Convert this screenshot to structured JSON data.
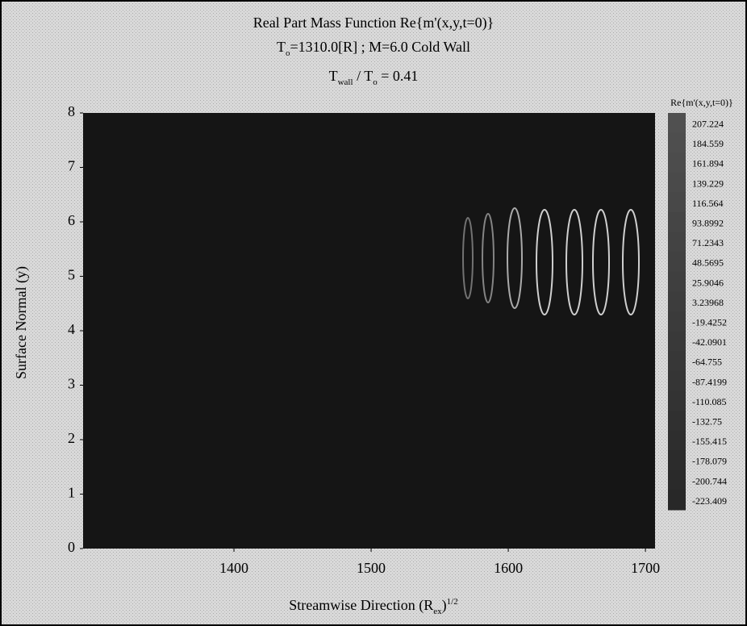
{
  "chart_data": {
    "type": "contour",
    "title": [
      {
        "text": "Real Part Mass Function Re{m'(x,y,t=0)}"
      }
    ],
    "subtitle": [
      {
        "text": "T"
      },
      {
        "text": "o",
        "sub": true
      },
      {
        "text": "=1310.0[R] ; M=6.0 Cold Wall"
      }
    ],
    "subtitle_2": [
      {
        "text": "T"
      },
      {
        "text": "wall",
        "sub": true
      },
      {
        "text": " / T"
      },
      {
        "text": "o",
        "sub": true
      },
      {
        "text": " = 0.41"
      }
    ],
    "x_label": [
      {
        "text": "Streamwise Direction (R"
      },
      {
        "text": "ex",
        "sub": true
      },
      {
        "text": ")"
      },
      {
        "text": "1/2",
        "sup": true
      }
    ],
    "y_label": "Surface Normal (y)",
    "xlim": [
      1290,
      1707
    ],
    "xticks": [
      1400,
      1500,
      1600,
      1700
    ],
    "ylim": [
      0,
      8
    ],
    "yticks": [
      0,
      1,
      2,
      3,
      4,
      5,
      6,
      7,
      8
    ],
    "colorbar": {
      "title": "Re{m'(x,y,t=0)}",
      "levels": [
        207.224,
        184.559,
        161.894,
        139.229,
        116.564,
        93.8992,
        71.2343,
        48.5695,
        25.9046,
        3.23968,
        -19.4252,
        -42.0901,
        -64.755,
        -87.4199,
        -110.085,
        -132.75,
        -155.415,
        -178.079,
        -200.744,
        -223.409
      ]
    }
  }
}
